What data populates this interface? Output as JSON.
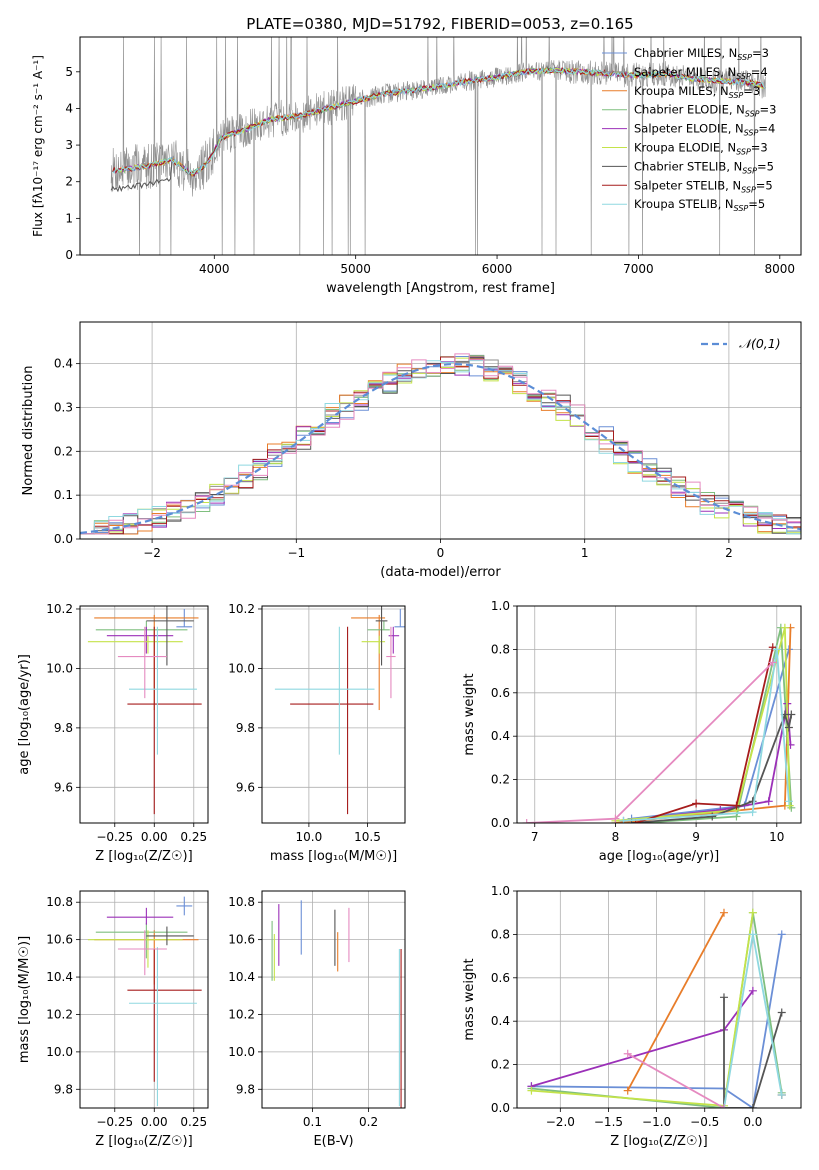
{
  "figure_title": "PLATE=0380, MJD=51792, FIBERID=0053, z=0.165",
  "models": [
    {
      "name": "Chabrier MILES",
      "nssp": "3",
      "color": "#6b8fd6"
    },
    {
      "name": "Salpeter MILES",
      "nssp": "4",
      "color": "#8e8e8e"
    },
    {
      "name": "Kroupa MILES",
      "nssp": "3",
      "color": "#e87d2a"
    },
    {
      "name": "Chabrier ELODIE",
      "nssp": "3",
      "color": "#7fbf7f"
    },
    {
      "name": "Salpeter ELODIE",
      "nssp": "4",
      "color": "#9b30b8"
    },
    {
      "name": "Kroupa ELODIE",
      "nssp": "3",
      "color": "#c4e34a"
    },
    {
      "name": "Chabrier STELIB",
      "nssp": "5",
      "color": "#555555"
    },
    {
      "name": "Salpeter STELIB",
      "nssp": "5",
      "color": "#a61c1c"
    },
    {
      "name": "Kroupa STELIB",
      "nssp": "5",
      "color": "#8fd8e0"
    }
  ],
  "extra_colors": {
    "pink": "#e58ac0",
    "gauss": "#5b8dd6"
  },
  "chart_data": [
    {
      "id": "spectrum",
      "type": "line",
      "xlabel": "wavelength [Angstrom, rest frame]",
      "ylabel": "Flux [fλ10⁻¹⁷ erg cm⁻² s⁻¹ A⁻¹]",
      "xlim": [
        3050,
        8150
      ],
      "ylim": [
        0,
        5.95
      ],
      "xticks": [
        4000,
        5000,
        6000,
        7000,
        8000
      ],
      "yticks": [
        0,
        1,
        2,
        3,
        4,
        5
      ],
      "grid": false,
      "legend": "right",
      "model_continuum": {
        "x": [
          3270,
          3400,
          3550,
          3700,
          3850,
          3950,
          4050,
          4200,
          4400,
          4600,
          4800,
          5000,
          5200,
          5400,
          5600,
          5800,
          6000,
          6200,
          6400,
          6600,
          6800,
          7000,
          7200,
          7400,
          7600,
          7800,
          7900
        ],
        "y": [
          2.3,
          2.35,
          2.45,
          2.6,
          2.2,
          2.5,
          3.2,
          3.4,
          3.7,
          3.8,
          4.0,
          4.2,
          4.4,
          4.5,
          4.6,
          4.75,
          4.85,
          5.0,
          5.05,
          5.0,
          4.95,
          4.9,
          4.95,
          4.8,
          4.75,
          4.7,
          4.6
        ]
      }
    },
    {
      "id": "residuals",
      "type": "step-histogram",
      "xlabel": "(data-model)/error",
      "ylabel": "Normed distribution",
      "xlim": [
        -2.5,
        2.5
      ],
      "ylim": [
        0,
        0.495
      ],
      "xticks": [
        -2,
        -1,
        0,
        1,
        2
      ],
      "yticks": [
        0.0,
        0.1,
        0.2,
        0.3,
        0.4
      ],
      "grid": true,
      "legend": "top-right",
      "legend_label": "𝒩(0,1)",
      "bin_width": 0.1
    },
    {
      "id": "age_vs_Z",
      "type": "errorbar",
      "xlabel": "Z [log₁₀(Z/Z☉)]",
      "ylabel": "age  [log₁₀(age/yr)]",
      "xlim": [
        -0.47,
        0.34
      ],
      "ylim": [
        9.48,
        10.21
      ],
      "xticks": [
        -0.25,
        0.0,
        0.25
      ],
      "yticks": [
        9.6,
        9.8,
        10.0,
        10.2
      ],
      "grid": true,
      "points": [
        {
          "m": 0,
          "x": 0.19,
          "y": 10.14,
          "xe": [
            0.05,
            0.05
          ],
          "ye": [
            0.0,
            0.06
          ]
        },
        {
          "m": 2,
          "x": 0.0,
          "y": 10.17,
          "xe": [
            0.38,
            0.28
          ],
          "ye": [
            0.31,
            0.01
          ]
        },
        {
          "m": 3,
          "x": -0.05,
          "y": 10.13,
          "xe": [
            0.32,
            0.26
          ],
          "ye": [
            0.0,
            0.03
          ]
        },
        {
          "m": 4,
          "x": -0.05,
          "y": 10.11,
          "xe": [
            0.25,
            0.17
          ],
          "ye": [
            0.06,
            0.03
          ]
        },
        {
          "m": 5,
          "x": -0.04,
          "y": 10.09,
          "xe": [
            0.38,
            0.22
          ],
          "ye": [
            0.04,
            0.02
          ]
        },
        {
          "m": 6,
          "x": 0.08,
          "y": 10.16,
          "xe": [
            0.13,
            0.17
          ],
          "ye": [
            0.15,
            0.05
          ]
        },
        {
          "m": 7,
          "x": 0.0,
          "y": 9.88,
          "xe": [
            0.17,
            0.3
          ],
          "ye": [
            0.37,
            0.26
          ]
        },
        {
          "m": 8,
          "x": 0.02,
          "y": 9.93,
          "xe": [
            0.18,
            0.25
          ],
          "ye": [
            0.22,
            0.21
          ]
        },
        {
          "m": 9,
          "x": -0.06,
          "y": 10.04,
          "xe": [
            0.17,
            0.14
          ],
          "ye": [
            0.14,
            0.1
          ]
        }
      ]
    },
    {
      "id": "age_vs_mass",
      "type": "errorbar",
      "xlabel": "mass [log₁₀(M/M☉)]",
      "ylabel": "",
      "xlim": [
        9.6,
        10.82
      ],
      "ylim": [
        9.48,
        10.21
      ],
      "xticks": [
        10.0,
        10.5
      ],
      "yticks": [
        9.6,
        9.8,
        10.0,
        10.2
      ],
      "grid": true,
      "points": [
        {
          "m": 0,
          "x": 10.78,
          "y": 10.14,
          "xe": [
            0.05,
            0.05
          ],
          "ye": [
            0.0,
            0.06
          ]
        },
        {
          "m": 2,
          "x": 10.6,
          "y": 10.17,
          "xe": [
            0.24,
            0.05
          ],
          "ye": [
            0.31,
            0.01
          ]
        },
        {
          "m": 3,
          "x": 10.64,
          "y": 10.13,
          "xe": [
            0.14,
            0.05
          ],
          "ye": [
            0.0,
            0.03
          ]
        },
        {
          "m": 4,
          "x": 10.72,
          "y": 10.11,
          "xe": [
            0.04,
            0.05
          ],
          "ye": [
            0.06,
            0.03
          ]
        },
        {
          "m": 5,
          "x": 10.6,
          "y": 10.09,
          "xe": [
            0.15,
            0.05
          ],
          "ye": [
            0.04,
            0.02
          ]
        },
        {
          "m": 6,
          "x": 10.62,
          "y": 10.16,
          "xe": [
            0.05,
            0.05
          ],
          "ye": [
            0.15,
            0.05
          ]
        },
        {
          "m": 7,
          "x": 10.33,
          "y": 9.88,
          "xe": [
            0.49,
            0.22
          ],
          "ye": [
            0.37,
            0.26
          ]
        },
        {
          "m": 8,
          "x": 10.26,
          "y": 9.93,
          "xe": [
            0.55,
            0.3
          ],
          "ye": [
            0.22,
            0.21
          ]
        },
        {
          "m": 9,
          "x": 10.7,
          "y": 10.04,
          "xe": [
            0.04,
            0.04
          ],
          "ye": [
            0.14,
            0.1
          ]
        }
      ]
    },
    {
      "id": "weight_vs_age",
      "type": "line",
      "xlabel": "age  [log₁₀(age/yr)]",
      "ylabel": "mass weight",
      "xlim": [
        6.78,
        10.3
      ],
      "ylim": [
        0,
        1.0
      ],
      "xticks": [
        7,
        8,
        9,
        10
      ],
      "yticks": [
        0.0,
        0.2,
        0.4,
        0.6,
        0.8,
        1.0
      ],
      "grid": true,
      "series": [
        {
          "m": 0,
          "x": [
            8.2,
            9.6,
            10.15
          ],
          "y": [
            0.02,
            0.08,
            0.8
          ]
        },
        {
          "m": 2,
          "x": [
            8.0,
            10.1,
            10.17
          ],
          "y": [
            0.0,
            0.08,
            0.9
          ]
        },
        {
          "m": 3,
          "x": [
            8.3,
            9.5,
            10.05,
            10.18
          ],
          "y": [
            0.0,
            0.03,
            0.9,
            0.07
          ]
        },
        {
          "m": 4,
          "x": [
            8.1,
            9.3,
            9.9,
            10.13,
            10.17
          ],
          "y": [
            0.01,
            0.06,
            0.1,
            0.55,
            0.36
          ]
        },
        {
          "m": 5,
          "x": [
            8.0,
            9.5,
            10.1,
            10.16
          ],
          "y": [
            0.01,
            0.06,
            0.9,
            0.08
          ]
        },
        {
          "m": 6,
          "x": [
            8.2,
            9.2,
            9.7,
            10.1,
            10.15,
            10.18
          ],
          "y": [
            0.0,
            0.03,
            0.1,
            0.5,
            0.44,
            0.5
          ]
        },
        {
          "m": 7,
          "x": [
            8.25,
            9.0,
            9.5,
            9.95
          ],
          "y": [
            0.0,
            0.09,
            0.08,
            0.81
          ]
        },
        {
          "m": 8,
          "x": [
            8.1,
            9.7,
            10.0,
            10.15
          ],
          "y": [
            0.01,
            0.05,
            0.8,
            0.1
          ]
        },
        {
          "m": 9,
          "x": [
            6.9,
            8.0,
            9.95
          ],
          "y": [
            0.0,
            0.02,
            0.74
          ]
        }
      ]
    },
    {
      "id": "mass_vs_Z",
      "type": "errorbar",
      "xlabel": "Z [log₁₀(Z/Z☉)]",
      "ylabel": "mass [log₁₀(M/M☉)]",
      "xlim": [
        -0.47,
        0.34
      ],
      "ylim": [
        9.7,
        10.86
      ],
      "xticks": [
        -0.25,
        0.0,
        0.25
      ],
      "yticks": [
        9.8,
        10.0,
        10.2,
        10.4,
        10.6,
        10.8
      ],
      "grid": true,
      "points": [
        {
          "m": 0,
          "x": 0.19,
          "y": 10.78,
          "xe": [
            0.05,
            0.05
          ],
          "ye": [
            0.05,
            0.05
          ]
        },
        {
          "m": 2,
          "x": 0.0,
          "y": 10.6,
          "xe": [
            0.38,
            0.28
          ],
          "ye": [
            0.24,
            0.05
          ]
        },
        {
          "m": 3,
          "x": -0.05,
          "y": 10.64,
          "xe": [
            0.32,
            0.26
          ],
          "ye": [
            0.14,
            0.05
          ]
        },
        {
          "m": 4,
          "x": -0.05,
          "y": 10.72,
          "xe": [
            0.25,
            0.17
          ],
          "ye": [
            0.04,
            0.05
          ]
        },
        {
          "m": 5,
          "x": -0.04,
          "y": 10.6,
          "xe": [
            0.38,
            0.22
          ],
          "ye": [
            0.15,
            0.05
          ]
        },
        {
          "m": 6,
          "x": 0.08,
          "y": 10.62,
          "xe": [
            0.13,
            0.17
          ],
          "ye": [
            0.05,
            0.05
          ]
        },
        {
          "m": 7,
          "x": 0.0,
          "y": 10.33,
          "xe": [
            0.17,
            0.3
          ],
          "ye": [
            0.49,
            0.22
          ]
        },
        {
          "m": 8,
          "x": 0.02,
          "y": 10.26,
          "xe": [
            0.18,
            0.25
          ],
          "ye": [
            0.55,
            0.3
          ]
        },
        {
          "m": 9,
          "x": -0.06,
          "y": 10.55,
          "xe": [
            0.17,
            0.14
          ],
          "ye": [
            0.14,
            0.1
          ]
        }
      ]
    },
    {
      "id": "mass_vs_EBV",
      "type": "errorbar",
      "xlabel": "E(B-V)",
      "ylabel": "",
      "xlim": [
        0.01,
        0.265
      ],
      "ylim": [
        9.7,
        10.86
      ],
      "xticks": [
        0.1,
        0.2
      ],
      "yticks": [
        9.8,
        10.0,
        10.2,
        10.4,
        10.6,
        10.8
      ],
      "grid": true,
      "points": [
        {
          "m": 0,
          "x": 0.08,
          "y": 10.66,
          "xe": [
            0,
            0
          ],
          "ye": [
            0.14,
            0.15
          ]
        },
        {
          "m": 2,
          "x": 0.145,
          "y": 10.54,
          "xe": [
            0,
            0
          ],
          "ye": [
            0.11,
            0.1
          ]
        },
        {
          "m": 3,
          "x": 0.028,
          "y": 10.53,
          "xe": [
            0,
            0
          ],
          "ye": [
            0.15,
            0.17
          ]
        },
        {
          "m": 4,
          "x": 0.04,
          "y": 10.62,
          "xe": [
            0,
            0
          ],
          "ye": [
            0.16,
            0.17
          ]
        },
        {
          "m": 5,
          "x": 0.032,
          "y": 10.53,
          "xe": [
            0,
            0
          ],
          "ye": [
            0.15,
            0.1
          ]
        },
        {
          "m": 6,
          "x": 0.14,
          "y": 10.6,
          "xe": [
            0,
            0
          ],
          "ye": [
            0.14,
            0.16
          ]
        },
        {
          "m": 7,
          "x": 0.258,
          "y": 10.0,
          "xe": [
            0,
            0
          ],
          "ye": [
            0.3,
            0.55
          ]
        },
        {
          "m": 8,
          "x": 0.255,
          "y": 10.1,
          "xe": [
            0,
            0
          ],
          "ye": [
            0.39,
            0.45
          ]
        },
        {
          "m": 9,
          "x": 0.165,
          "y": 10.6,
          "xe": [
            0,
            0
          ],
          "ye": [
            0.12,
            0.17
          ]
        }
      ]
    },
    {
      "id": "weight_vs_Z",
      "type": "line",
      "xlabel": "Z [log₁₀(Z/Z☉)]",
      "ylabel": "mass weight",
      "xlim": [
        -2.45,
        0.5
      ],
      "ylim": [
        0,
        1.0
      ],
      "xticks": [
        -2.0,
        -1.5,
        -1.0,
        -0.5,
        0.0
      ],
      "yticks": [
        0.0,
        0.2,
        0.4,
        0.6,
        0.8,
        1.0
      ],
      "grid": true,
      "series": [
        {
          "m": 0,
          "x": [
            -2.3,
            -0.3,
            0.0,
            0.3
          ],
          "y": [
            0.1,
            0.09,
            0.0,
            0.8
          ]
        },
        {
          "m": 2,
          "x": [
            -1.3,
            -0.3
          ],
          "y": [
            0.08,
            0.9
          ]
        },
        {
          "m": 3,
          "x": [
            -2.3,
            -0.3,
            0.0,
            0.3
          ],
          "y": [
            0.09,
            0.0,
            0.9,
            0.07
          ]
        },
        {
          "m": 4,
          "x": [
            -2.3,
            -0.3,
            0.0
          ],
          "y": [
            0.1,
            0.36,
            0.54
          ]
        },
        {
          "m": 5,
          "x": [
            -2.3,
            -0.3,
            0.0
          ],
          "y": [
            0.08,
            0.01,
            0.9
          ]
        },
        {
          "m": 6,
          "x": [
            -0.3,
            -0.3,
            0.0,
            0.3
          ],
          "y": [
            0.51,
            0.0,
            0.0,
            0.44
          ]
        },
        {
          "m": 7,
          "x": [
            0.3
          ],
          "y": [
            0.06
          ]
        },
        {
          "m": 8,
          "x": [
            -0.3,
            0.0,
            0.3
          ],
          "y": [
            0.0,
            0.8,
            0.06
          ]
        },
        {
          "m": 9,
          "x": [
            -1.3,
            -0.3
          ],
          "y": [
            0.25,
            0.0
          ]
        }
      ]
    }
  ]
}
